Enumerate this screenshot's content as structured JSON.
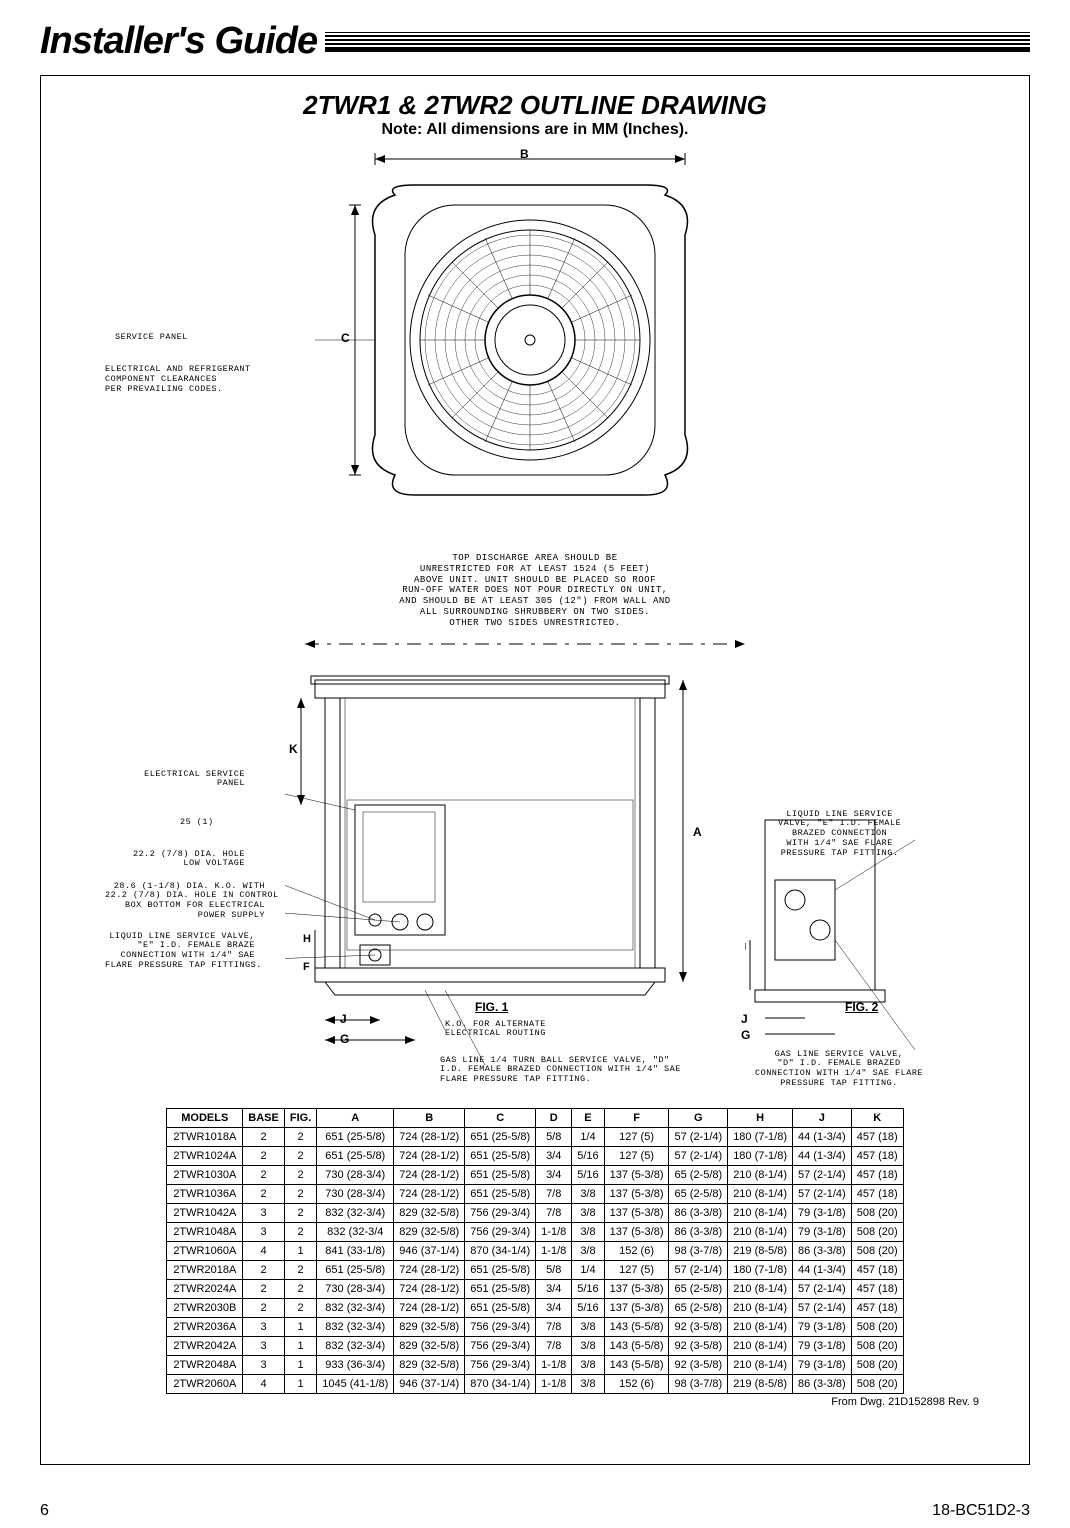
{
  "header": {
    "title": "Installer's Guide"
  },
  "section": {
    "title": "2TWR1 & 2TWR2 OUTLINE DRAWING",
    "note": "Note: All dimensions are in MM (Inches)."
  },
  "topview": {
    "dim_b": "B",
    "dim_c": "C",
    "service_panel": "SERVICE PANEL",
    "clearances": "ELECTRICAL AND REFRIGERANT\nCOMPONENT CLEARANCES\nPER PREVAILING CODES.",
    "discharge_note": "TOP DISCHARGE AREA SHOULD BE\nUNRESTRICTED FOR AT LEAST 1524 (5 FEET)\nABOVE UNIT. UNIT SHOULD BE PLACED SO ROOF\nRUN-OFF WATER DOES NOT POUR DIRECTLY ON UNIT,\nAND SHOULD BE AT LEAST 305 (12\") FROM WALL AND\nALL SURROUNDING SHRUBBERY ON TWO SIDES.\nOTHER TWO SIDES UNRESTRICTED."
  },
  "sideview": {
    "dim_k": "K",
    "dim_a": "A",
    "dim_h": "H",
    "dim_f": "F",
    "dim_j": "J",
    "dim_g": "G",
    "esp": "ELECTRICAL SERVICE\nPANEL",
    "hole25": "25 (1)",
    "hole22": "22.2 (7/8) DIA. HOLE\nLOW VOLTAGE",
    "hole28": "28.6 (1-1/8) DIA. K.O. WITH\n22.2 (7/8) DIA. HOLE IN CONTROL\nBOX BOTTOM FOR ELECTRICAL\nPOWER SUPPLY",
    "liquid1": "LIQUID LINE SERVICE VALVE,\n\"E\" I.D. FEMALE BRAZE\nCONNECTION WITH 1/4\" SAE\nFLARE PRESSURE TAP FITTINGS.",
    "ko_alt": "K.O. FOR ALTERNATE\nELECTRICAL ROUTING",
    "gas1": "GAS LINE 1/4 TURN BALL SERVICE VALVE, \"D\"\nI.D. FEMALE BRAZED CONNECTION WITH 1/4\" SAE\nFLARE PRESSURE TAP FITTING.",
    "liquid2": "LIQUID LINE SERVICE\nVALVE, \"E\" I.D. FEMALE\nBRAZED CONNECTION\nWITH 1/4\" SAE FLARE\nPRESSURE TAP FITTING.",
    "gas2": "GAS LINE SERVICE VALVE,\n\"D\" I.D. FEMALE BRAZED\nCONNECTION WITH 1/4\" SAE FLARE\nPRESSURE TAP FITTING.",
    "fig1": "FIG. 1",
    "fig2": "FIG. 2"
  },
  "table": {
    "columns": [
      "MODELS",
      "BASE",
      "FIG.",
      "A",
      "B",
      "C",
      "D",
      "E",
      "F",
      "G",
      "H",
      "J",
      "K"
    ],
    "rows": [
      [
        "2TWR1018A",
        "2",
        "2",
        "651 (25-5/8)",
        "724 (28-1/2)",
        "651 (25-5/8)",
        "5/8",
        "1/4",
        "127 (5)",
        "57 (2-1/4)",
        "180 (7-1/8)",
        "44 (1-3/4)",
        "457 (18)"
      ],
      [
        "2TWR1024A",
        "2",
        "2",
        "651 (25-5/8)",
        "724 (28-1/2)",
        "651 (25-5/8)",
        "3/4",
        "5/16",
        "127 (5)",
        "57 (2-1/4)",
        "180 (7-1/8)",
        "44 (1-3/4)",
        "457 (18)"
      ],
      [
        "2TWR1030A",
        "2",
        "2",
        "730 (28-3/4)",
        "724 (28-1/2)",
        "651 (25-5/8)",
        "3/4",
        "5/16",
        "137 (5-3/8)",
        "65 (2-5/8)",
        "210 (8-1/4)",
        "57 (2-1/4)",
        "457 (18)"
      ],
      [
        "2TWR1036A",
        "2",
        "2",
        "730 (28-3/4)",
        "724 (28-1/2)",
        "651 (25-5/8)",
        "7/8",
        "3/8",
        "137 (5-3/8)",
        "65 (2-5/8)",
        "210 (8-1/4)",
        "57 (2-1/4)",
        "457 (18)"
      ],
      [
        "2TWR1042A",
        "3",
        "2",
        "832 (32-3/4)",
        "829 (32-5/8)",
        "756 (29-3/4)",
        "7/8",
        "3/8",
        "137 (5-3/8)",
        "86 (3-3/8)",
        "210 (8-1/4)",
        "79 (3-1/8)",
        "508 (20)"
      ],
      [
        "2TWR1048A",
        "3",
        "2",
        "832 (32-3/4",
        "829 (32-5/8)",
        "756 (29-3/4)",
        "1-1/8",
        "3/8",
        "137 (5-3/8)",
        "86 (3-3/8)",
        "210 (8-1/4)",
        "79 (3-1/8)",
        "508 (20)"
      ],
      [
        "2TWR1060A",
        "4",
        "1",
        "841 (33-1/8)",
        "946 (37-1/4)",
        "870 (34-1/4)",
        "1-1/8",
        "3/8",
        "152 (6)",
        "98 (3-7/8)",
        "219 (8-5/8)",
        "86 (3-3/8)",
        "508 (20)"
      ],
      [
        "2TWR2018A",
        "2",
        "2",
        "651 (25-5/8)",
        "724 (28-1/2)",
        "651 (25-5/8)",
        "5/8",
        "1/4",
        "127 (5)",
        "57 (2-1/4)",
        "180 (7-1/8)",
        "44 (1-3/4)",
        "457 (18)"
      ],
      [
        "2TWR2024A",
        "2",
        "2",
        "730 (28-3/4)",
        "724 (28-1/2)",
        "651 (25-5/8)",
        "3/4",
        "5/16",
        "137 (5-3/8)",
        "65 (2-5/8)",
        "210 (8-1/4)",
        "57 (2-1/4)",
        "457 (18)"
      ],
      [
        "2TWR2030B",
        "2",
        "2",
        "832 (32-3/4)",
        "724 (28-1/2)",
        "651 (25-5/8)",
        "3/4",
        "5/16",
        "137 (5-3/8)",
        "65 (2-5/8)",
        "210 (8-1/4)",
        "57 (2-1/4)",
        "457 (18)"
      ],
      [
        "2TWR2036A",
        "3",
        "1",
        "832 (32-3/4)",
        "829 (32-5/8)",
        "756 (29-3/4)",
        "7/8",
        "3/8",
        "143 (5-5/8)",
        "92 (3-5/8)",
        "210 (8-1/4)",
        "79 (3-1/8)",
        "508 (20)"
      ],
      [
        "2TWR2042A",
        "3",
        "1",
        "832 (32-3/4)",
        "829 (32-5/8)",
        "756 (29-3/4)",
        "7/8",
        "3/8",
        "143 (5-5/8)",
        "92 (3-5/8)",
        "210 (8-1/4)",
        "79 (3-1/8)",
        "508 (20)"
      ],
      [
        "2TWR2048A",
        "3",
        "1",
        "933 (36-3/4)",
        "829 (32-5/8)",
        "756 (29-3/4)",
        "1-1/8",
        "3/8",
        "143 (5-5/8)",
        "92 (3-5/8)",
        "210 (8-1/4)",
        "79 (3-1/8)",
        "508 (20)"
      ],
      [
        "2TWR2060A",
        "4",
        "1",
        "1045 (41-1/8)",
        "946 (37-1/4)",
        "870 (34-1/4)",
        "1-1/8",
        "3/8",
        "152 (6)",
        "98 (3-7/8)",
        "219 (8-5/8)",
        "86 (3-3/8)",
        "508 (20)"
      ]
    ],
    "source": "From Dwg. 21D152898 Rev. 9"
  },
  "footer": {
    "page": "6",
    "doc": "18-BC51D2-3"
  },
  "style": {
    "stroke": "#000000",
    "stroke_width": 1,
    "bg": "#ffffff"
  }
}
